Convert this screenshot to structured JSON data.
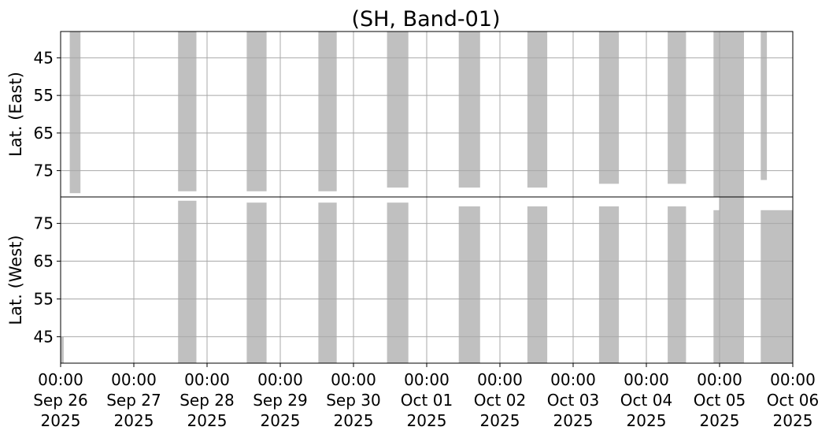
{
  "chart_data": {
    "type": "heatmap",
    "title": "(SH, Band-01)",
    "xlim": [
      "2025-09-26 00:00",
      "2025-10-06 00:00"
    ],
    "xticks": [
      {
        "time": "00:00",
        "day": "Sep 26",
        "year": "2025"
      },
      {
        "time": "00:00",
        "day": "Sep 27",
        "year": "2025"
      },
      {
        "time": "00:00",
        "day": "Sep 28",
        "year": "2025"
      },
      {
        "time": "00:00",
        "day": "Sep 29",
        "year": "2025"
      },
      {
        "time": "00:00",
        "day": "Sep 30",
        "year": "2025"
      },
      {
        "time": "00:00",
        "day": "Oct 01",
        "year": "2025"
      },
      {
        "time": "00:00",
        "day": "Oct 02",
        "year": "2025"
      },
      {
        "time": "00:00",
        "day": "Oct 03",
        "year": "2025"
      },
      {
        "time": "00:00",
        "day": "Oct 04",
        "year": "2025"
      },
      {
        "time": "00:00",
        "day": "Oct 05",
        "year": "2025"
      },
      {
        "time": "00:00",
        "day": "Oct 06",
        "year": "2025"
      }
    ],
    "grid": true,
    "fill_color": "#bdbdbd",
    "panels": [
      {
        "ylabel": "Lat. (East)",
        "ylim": [
          38,
          82
        ],
        "y_inverted": true,
        "yticks": [
          45,
          55,
          65,
          75
        ],
        "coverage": [
          {
            "day": "2025-09-26",
            "start": "03:00",
            "end": "06:30",
            "lat_min": 38,
            "lat_max": 81
          },
          {
            "day": "2025-09-27",
            "start": "14:30",
            "end": "20:30",
            "lat_min": 38,
            "lat_max": 80.5
          },
          {
            "day": "2025-09-28",
            "start": "13:00",
            "end": "19:30",
            "lat_min": 38,
            "lat_max": 80.5
          },
          {
            "day": "2025-09-29",
            "start": "12:30",
            "end": "18:30",
            "lat_min": 38,
            "lat_max": 80.5
          },
          {
            "day": "2025-09-30",
            "start": "11:00",
            "end": "18:00",
            "lat_min": 38,
            "lat_max": 79.5
          },
          {
            "day": "2025-10-01",
            "start": "10:30",
            "end": "17:30",
            "lat_min": 38,
            "lat_max": 79.5
          },
          {
            "day": "2025-10-02",
            "start": "09:00",
            "end": "15:30",
            "lat_min": 38,
            "lat_max": 79.5
          },
          {
            "day": "2025-10-03",
            "start": "08:30",
            "end": "15:00",
            "lat_min": 38,
            "lat_max": 78.5
          },
          {
            "day": "2025-10-04",
            "start": "07:00",
            "end": "13:00",
            "lat_min": 38,
            "lat_max": 78.5
          },
          {
            "day": "2025-10-05",
            "start": "13:30",
            "end": "15:30",
            "lat_min": 38,
            "lat_max": 77.5
          },
          {
            "day": "2025-10-04",
            "start": "22:00",
            "end": "23:59",
            "lat_min": 38,
            "lat_max": 82
          },
          {
            "day": "2025-10-05",
            "start": "00:00",
            "end": "08:00",
            "lat_min": 38,
            "lat_max": 82
          }
        ]
      },
      {
        "ylabel": "Lat. (West)",
        "ylim": [
          38,
          82
        ],
        "y_inverted": false,
        "yticks": [
          45,
          55,
          65,
          75
        ],
        "coverage": [
          {
            "day": "2025-09-26",
            "start": "00:00",
            "end": "01:00",
            "lat_min": 38,
            "lat_max": 45
          },
          {
            "day": "2025-09-27",
            "start": "14:30",
            "end": "20:30",
            "lat_min": 38,
            "lat_max": 81
          },
          {
            "day": "2025-09-28",
            "start": "13:00",
            "end": "19:30",
            "lat_min": 38,
            "lat_max": 80.5
          },
          {
            "day": "2025-09-29",
            "start": "12:30",
            "end": "18:30",
            "lat_min": 38,
            "lat_max": 80.5
          },
          {
            "day": "2025-09-30",
            "start": "11:00",
            "end": "18:00",
            "lat_min": 38,
            "lat_max": 80.5
          },
          {
            "day": "2025-10-01",
            "start": "10:30",
            "end": "17:30",
            "lat_min": 38,
            "lat_max": 79.5
          },
          {
            "day": "2025-10-02",
            "start": "09:00",
            "end": "15:30",
            "lat_min": 38,
            "lat_max": 79.5
          },
          {
            "day": "2025-10-03",
            "start": "08:30",
            "end": "15:00",
            "lat_min": 38,
            "lat_max": 79.5
          },
          {
            "day": "2025-10-04",
            "start": "07:00",
            "end": "13:00",
            "lat_min": 38,
            "lat_max": 79.5
          },
          {
            "day": "2025-10-04",
            "start": "22:00",
            "end": "23:59",
            "lat_min": 38,
            "lat_max": 78.5
          },
          {
            "day": "2025-10-05",
            "start": "00:00",
            "end": "08:00",
            "lat_min": 38,
            "lat_max": 82
          },
          {
            "day": "2025-10-05",
            "start": "13:30",
            "end": "23:59",
            "lat_min": 38,
            "lat_max": 78.5
          }
        ]
      }
    ]
  }
}
